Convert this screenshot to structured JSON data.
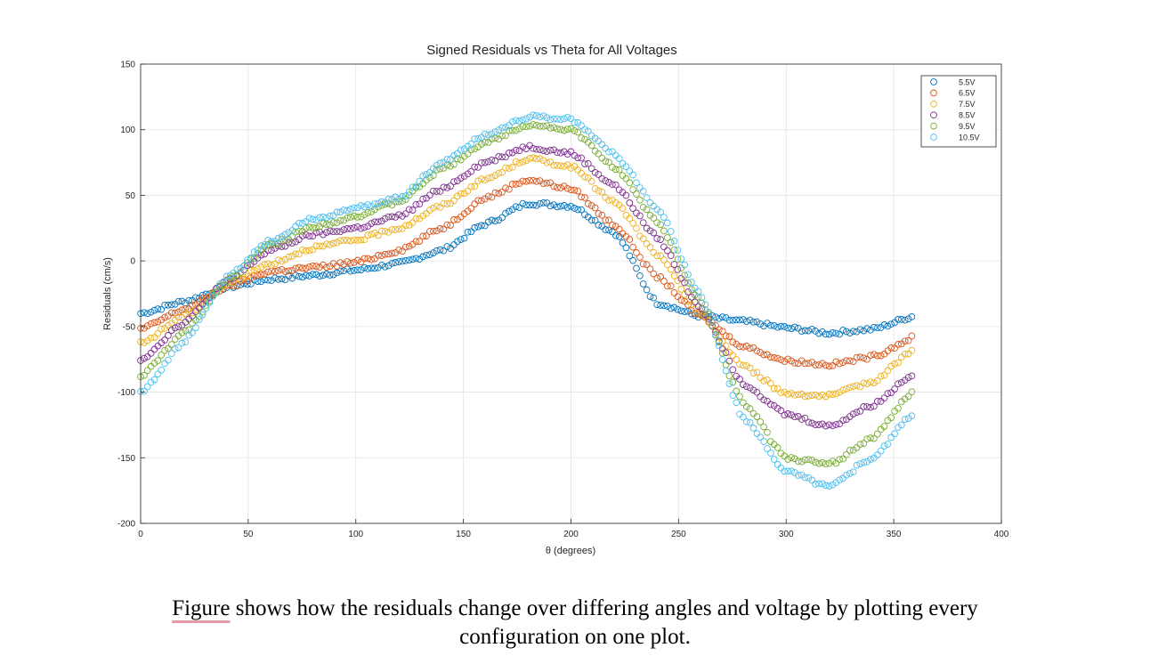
{
  "chart_data": {
    "type": "scatter",
    "title": "Signed Residuals vs Theta for All Voltages",
    "xlabel": "θ (degrees)",
    "ylabel": "Residuals (cm/s)",
    "xlim": [
      0,
      400
    ],
    "ylim": [
      -200,
      150
    ],
    "xticks": [
      0,
      50,
      100,
      150,
      200,
      250,
      300,
      350,
      400
    ],
    "yticks": [
      -200,
      -150,
      -100,
      -50,
      0,
      50,
      100,
      150
    ],
    "grid": true,
    "legend_position": "top-right",
    "marker": "open-circle",
    "x_range_of_points": [
      0,
      360
    ],
    "series": [
      {
        "name": "5.5V",
        "color": "#0072BD",
        "x": [
          0,
          20,
          40,
          60,
          80,
          100,
          120,
          140,
          160,
          180,
          200,
          220,
          240,
          260,
          280,
          300,
          320,
          340,
          360
        ],
        "y": [
          -40,
          -31,
          -20,
          -14,
          -11,
          -7,
          -2,
          8,
          28,
          44,
          42,
          22,
          -32,
          -42,
          -46,
          -51,
          -55,
          -52,
          -42
        ]
      },
      {
        "name": "6.5V",
        "color": "#D95319",
        "x": [
          0,
          20,
          40,
          60,
          80,
          100,
          120,
          140,
          160,
          180,
          200,
          220,
          240,
          260,
          280,
          300,
          320,
          340,
          360
        ],
        "y": [
          -52,
          -37,
          -20,
          -8,
          -5,
          -1,
          8,
          25,
          48,
          62,
          55,
          28,
          -12,
          -42,
          -65,
          -76,
          -79,
          -73,
          -58
        ]
      },
      {
        "name": "7.5V",
        "color": "#EDB120",
        "x": [
          0,
          20,
          40,
          60,
          80,
          100,
          120,
          140,
          160,
          180,
          200,
          220,
          240,
          260,
          280,
          300,
          320,
          340,
          360
        ],
        "y": [
          -63,
          -42,
          -18,
          -2,
          10,
          16,
          25,
          42,
          62,
          78,
          72,
          45,
          5,
          -40,
          -80,
          -101,
          -103,
          -92,
          -67
        ]
      },
      {
        "name": "8.5V",
        "color": "#7E2F8E",
        "x": [
          0,
          20,
          40,
          60,
          80,
          100,
          120,
          140,
          160,
          180,
          200,
          220,
          240,
          260,
          280,
          300,
          320,
          340,
          360
        ],
        "y": [
          -75,
          -47,
          -16,
          8,
          20,
          25,
          34,
          55,
          75,
          87,
          82,
          58,
          18,
          -35,
          -93,
          -117,
          -126,
          -110,
          -85
        ]
      },
      {
        "name": "9.5V",
        "color": "#77AC30",
        "x": [
          0,
          20,
          40,
          60,
          80,
          100,
          120,
          140,
          160,
          180,
          200,
          220,
          240,
          260,
          280,
          300,
          320,
          340,
          360
        ],
        "y": [
          -88,
          -55,
          -15,
          12,
          26,
          34,
          45,
          70,
          90,
          104,
          100,
          72,
          30,
          -30,
          -108,
          -150,
          -155,
          -135,
          -98
        ]
      },
      {
        "name": "10.5V",
        "color": "#4DBEEE",
        "x": [
          0,
          20,
          40,
          60,
          80,
          100,
          120,
          140,
          160,
          180,
          200,
          220,
          240,
          260,
          280,
          300,
          320,
          340,
          360
        ],
        "y": [
          -100,
          -62,
          -13,
          15,
          32,
          40,
          48,
          75,
          96,
          110,
          108,
          82,
          40,
          -25,
          -120,
          -160,
          -172,
          -150,
          -115
        ]
      }
    ]
  },
  "caption": {
    "underlined_word": "Figure",
    "line1_rest": " shows how the residuals change over differing angles and voltage by plotting every",
    "line2": "configuration on one plot."
  }
}
